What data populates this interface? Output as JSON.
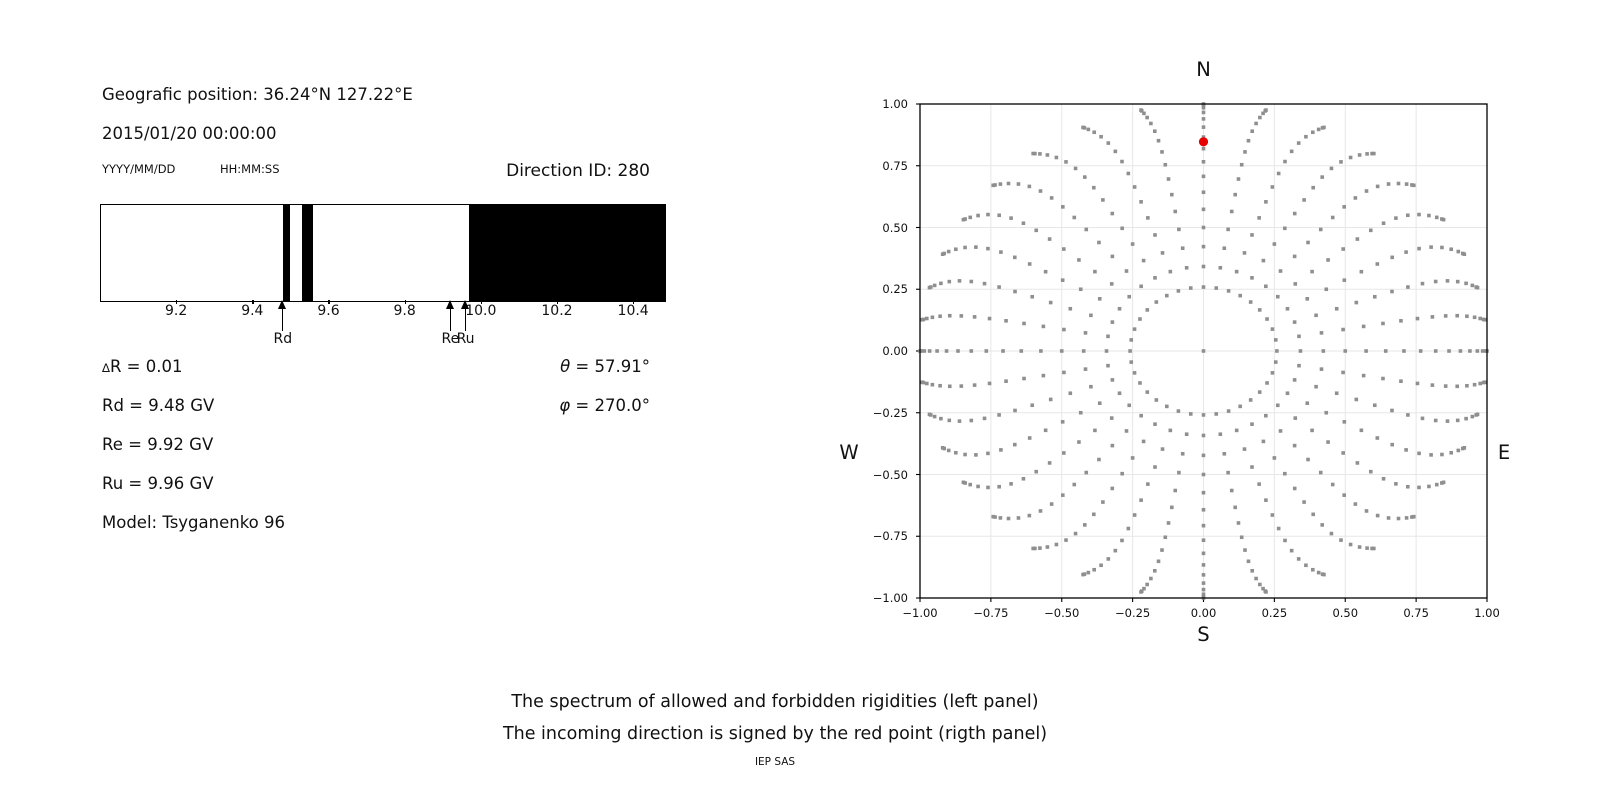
{
  "title_block": {
    "geographic_position": "Geografic position: 36.24°N 127.22°E",
    "datetime": "2015/01/20 00:00:00",
    "date_format_hint": "YYYY/MM/DD",
    "time_format_hint": "HH:MM:SS",
    "direction_id": "Direction ID: 280"
  },
  "spectrum": {
    "axis_ticks": [
      {
        "value": 9.2,
        "label": "9.2"
      },
      {
        "value": 9.4,
        "label": "9.4"
      },
      {
        "value": 9.6,
        "label": "9.6"
      },
      {
        "value": 9.8,
        "label": "9.8"
      },
      {
        "value": 10.0,
        "label": "10.0"
      },
      {
        "value": 10.2,
        "label": "10.2"
      },
      {
        "value": 10.4,
        "label": "10.4"
      }
    ],
    "stats_left": [
      "∆R = 0.01",
      "Rd = 9.48 GV",
      "Re = 9.92 GV",
      "Ru = 9.96 GV",
      "Model: Tsyganenko 96"
    ],
    "stats_right": [
      "θ = 57.91°",
      "φ = 270.0°"
    ]
  },
  "polar": {
    "compass": {
      "north": "N",
      "south": "S",
      "east": "E",
      "west": "W"
    },
    "xtick_labels": [
      "−1.00",
      "−0.75",
      "−0.50",
      "−0.25",
      "0.00",
      "0.25",
      "0.50",
      "0.75",
      "1.00"
    ],
    "ytick_labels": [
      "1.00",
      "0.75",
      "0.50",
      "0.25",
      "0.00",
      "−0.25",
      "−0.50",
      "−0.75",
      "−1.00"
    ],
    "grid_color": "#e7e7e7",
    "dot_color": "#8f8f8f",
    "red_point_color": "#e60000",
    "spine_color": "#000000"
  },
  "captions": {
    "line1": "The spectrum of allowed and forbidden rigidities (left panel)",
    "line2": "The incoming direction is signed by the red point (rigth panel)",
    "credit": "IEP SAS"
  },
  "chart_data": [
    {
      "type": "bar",
      "panel": "left-rigidity-spectrum",
      "description": "Horizontal rigidity spectrum strip: white = allowed rigidities, black = forbidden rigidities",
      "x_range_gv": [
        9.0,
        10.481
      ],
      "xticks": [
        9.2,
        9.4,
        9.6,
        9.8,
        10.0,
        10.2,
        10.4
      ],
      "forbidden_bands_gv": [
        [
          9.478,
          9.497
        ],
        [
          9.529,
          9.556
        ],
        [
          9.967,
          10.481
        ]
      ],
      "cutoff_markers": [
        {
          "label": "Rd",
          "value_gv": 9.48
        },
        {
          "label": "Re",
          "value_gv": 9.92
        },
        {
          "label": "Ru",
          "value_gv": 9.96
        }
      ],
      "delta_R_gv": 0.01,
      "Rd_gv": 9.48,
      "Re_gv": 9.92,
      "Ru_gv": 9.96,
      "model": "Tsyganenko 96",
      "theta_deg": 57.91,
      "phi_deg": 270.0,
      "bar_color": "#000000"
    },
    {
      "type": "scatter",
      "panel": "right-incoming-direction",
      "xlim": [
        -1,
        1
      ],
      "ylim": [
        -1,
        1
      ],
      "xticks": [
        -1.0,
        -0.75,
        -0.5,
        -0.25,
        0.0,
        0.25,
        0.5,
        0.75,
        1.0
      ],
      "yticks": [
        1.0,
        0.75,
        0.5,
        0.25,
        0.0,
        -0.25,
        -0.5,
        -0.75,
        -1.0
      ],
      "grid": true,
      "compass_labels": [
        "N",
        "E",
        "S",
        "W"
      ],
      "series": [
        {
          "name": "direction-grid-dots",
          "marker": "square",
          "color": "#8f8f8f",
          "generator": {
            "azimuth_deg_start": 0,
            "azimuth_deg_stop": 350,
            "azimuth_deg_step": 10,
            "zenith_deg_start": 15,
            "zenith_deg_stop": 90,
            "zenith_deg_step": 5,
            "radius_rule": "sin(zenith)",
            "include_center_point": true,
            "tail_curl_deg": 8
          }
        },
        {
          "name": "incoming-direction-red-point",
          "marker": "circle",
          "color": "#e60000",
          "points": [
            [
              0.0,
              0.847
            ]
          ]
        }
      ]
    }
  ]
}
